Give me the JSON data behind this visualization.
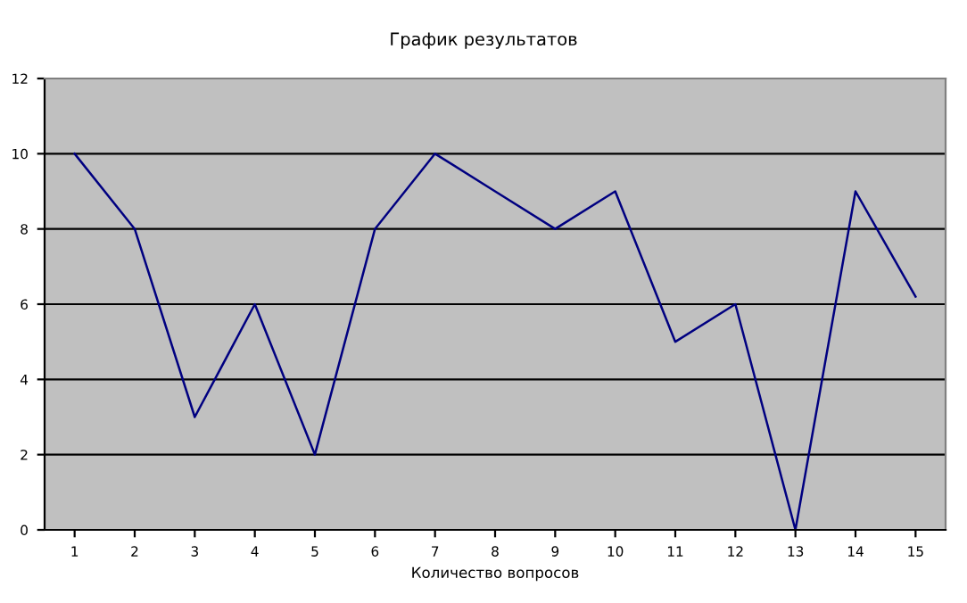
{
  "chart_data": {
    "type": "line",
    "title": "График результатов",
    "xlabel": "Количество вопросов",
    "categories": [
      "1",
      "2",
      "3",
      "4",
      "5",
      "6",
      "7",
      "8",
      "9",
      "10",
      "11",
      "12",
      "13",
      "14",
      "15"
    ],
    "series": [
      {
        "color": "#000080",
        "values": [
          10,
          8,
          3,
          6,
          2,
          8,
          10,
          9,
          8,
          9,
          5,
          6,
          0,
          9,
          6.2
        ]
      }
    ],
    "ylim": [
      0,
      12
    ],
    "yticks": [
      0,
      2,
      4,
      6,
      8,
      10,
      12
    ],
    "grid": "y",
    "legend": false,
    "marker": "none",
    "line_style": "solid"
  }
}
